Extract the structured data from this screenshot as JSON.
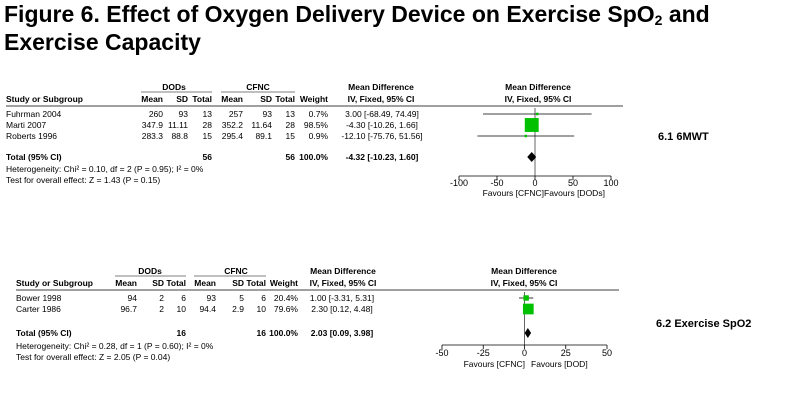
{
  "figure": {
    "title_main": "Figure 6. Effect of Oxygen Delivery Device on Exercise SpO",
    "title_sub": "2",
    "title_tail": " and",
    "title_line2": "Exercise Capacity"
  },
  "headers": {
    "group1": "DODs",
    "group2": "CFNC",
    "mean": "Mean",
    "sd": "SD",
    "total": "Total",
    "weight": "Weight",
    "study": "Study or Subgroup",
    "md_title": "Mean Difference",
    "md_method": "IV, Fixed, 95% CI"
  },
  "panels": [
    {
      "label": "6.1 6MWT",
      "studies": [
        {
          "name": "Fuhrman 2004",
          "m1": "260",
          "sd1": "93",
          "n1": "13",
          "m2": "257",
          "sd2": "93",
          "n2": "13",
          "weight": "0.7%",
          "ci": "3.00 [-68.49, 74.49]",
          "est": 3.0,
          "lo": -68.49,
          "hi": 74.49,
          "w": 0.7
        },
        {
          "name": "Marti 2007",
          "m1": "347.9",
          "sd1": "11.11",
          "n1": "28",
          "m2": "352.2",
          "sd2": "11.64",
          "n2": "28",
          "weight": "98.5%",
          "ci": "-4.30 [-10.26, 1.66]",
          "est": -4.3,
          "lo": -10.26,
          "hi": 1.66,
          "w": 98.5
        },
        {
          "name": "Roberts 1996",
          "m1": "283.3",
          "sd1": "88.8",
          "n1": "15",
          "m2": "295.4",
          "sd2": "89.1",
          "n2": "15",
          "weight": "0.9%",
          "ci": "-12.10 [-75.76, 51.56]",
          "est": -12.1,
          "lo": -75.76,
          "hi": 51.56,
          "w": 0.9
        }
      ],
      "total": {
        "label": "Total (95% CI)",
        "n1": "56",
        "n2": "56",
        "weight": "100.0%",
        "ci": "-4.32 [-10.23, 1.60]",
        "est": -4.32,
        "lo": -10.23,
        "hi": 1.6
      },
      "heterogeneity": "Heterogeneity: Chi² = 0.10, df = 2 (P = 0.95); I² = 0%",
      "overall": "Test for overall effect: Z = 1.43 (P = 0.15)",
      "axis": {
        "min": -100,
        "max": 100,
        "ticks": [
          -100,
          -50,
          0,
          50,
          100
        ],
        "tick_labels": [
          "-100",
          "-50",
          "0",
          "50",
          "100"
        ]
      },
      "favours_left": "Favours [CFNC]",
      "favours_right": "Favours [DODs]"
    },
    {
      "label": "6.2 Exercise SpO2",
      "studies": [
        {
          "name": "Bower 1998",
          "m1": "94",
          "sd1": "2",
          "n1": "6",
          "m2": "93",
          "sd2": "5",
          "n2": "6",
          "weight": "20.4%",
          "ci": "1.00 [-3.31, 5.31]",
          "est": 1.0,
          "lo": -3.31,
          "hi": 5.31,
          "w": 20.4
        },
        {
          "name": "Carter 1986",
          "m1": "96.7",
          "sd1": "2",
          "n1": "10",
          "m2": "94.4",
          "sd2": "2.9",
          "n2": "10",
          "weight": "79.6%",
          "ci": "2.30 [0.12, 4.48]",
          "est": 2.3,
          "lo": 0.12,
          "hi": 4.48,
          "w": 79.6
        }
      ],
      "total": {
        "label": "Total (95% CI)",
        "n1": "16",
        "n2": "16",
        "weight": "100.0%",
        "ci": "2.03 [0.09, 3.98]",
        "est": 2.03,
        "lo": 0.09,
        "hi": 3.98
      },
      "heterogeneity": "Heterogeneity: Chi² = 0.28, df = 1 (P = 0.60); I² = 0%",
      "overall": "Test for overall effect: Z = 2.05 (P = 0.04)",
      "axis": {
        "min": -50,
        "max": 50,
        "ticks": [
          -50,
          -25,
          0,
          25,
          50
        ],
        "tick_labels": [
          "-50",
          "-25",
          "0",
          "25",
          "50"
        ]
      },
      "favours_left": "Favours [CFNC]",
      "favours_right": "Favours [DOD]"
    }
  ],
  "colors": {
    "square": "#00c000",
    "diamond": "#000000",
    "line": "#000000"
  },
  "chart_data": [
    {
      "type": "forest",
      "title": "6.1 6MWT",
      "xlabel": "",
      "ylabel": "",
      "xlim": [
        -100,
        100
      ],
      "studies": [
        "Fuhrman 2004",
        "Marti 2007",
        "Roberts 1996"
      ],
      "estimates": [
        3.0,
        -4.3,
        -12.1
      ],
      "ci_lower": [
        -68.49,
        -10.26,
        -75.76
      ],
      "ci_upper": [
        74.49,
        1.66,
        51.56
      ],
      "weights": [
        0.7,
        98.5,
        0.9
      ],
      "pooled": {
        "estimate": -4.32,
        "lower": -10.23,
        "upper": 1.6
      },
      "favours": [
        "Favours [CFNC]",
        "Favours [DODs]"
      ]
    },
    {
      "type": "forest",
      "title": "6.2 Exercise SpO2",
      "xlabel": "",
      "ylabel": "",
      "xlim": [
        -50,
        50
      ],
      "studies": [
        "Bower 1998",
        "Carter 1986"
      ],
      "estimates": [
        1.0,
        2.3
      ],
      "ci_lower": [
        -3.31,
        0.12
      ],
      "ci_upper": [
        5.31,
        4.48
      ],
      "weights": [
        20.4,
        79.6
      ],
      "pooled": {
        "estimate": 2.03,
        "lower": 0.09,
        "upper": 3.98
      },
      "favours": [
        "Favours [CFNC]",
        "Favours [DOD]"
      ]
    }
  ]
}
